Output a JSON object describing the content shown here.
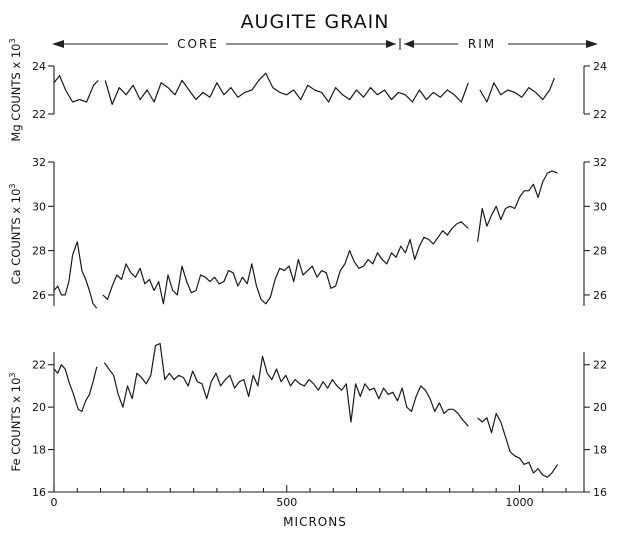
{
  "chart_data": {
    "type": "line",
    "title": "AUGITE GRAIN",
    "zones": {
      "core": "CORE",
      "rim": "RIM",
      "boundary_microns": 740
    },
    "xlabel": "MICRONS",
    "xlim": [
      0,
      1100
    ],
    "x_ticks": [
      0,
      500,
      1000
    ],
    "x_tick_labels": [
      "0",
      "500",
      "1000"
    ],
    "panels": [
      {
        "key": "mg",
        "ylabel_parts": [
          "Mg COUNTS x 10",
          "3"
        ],
        "ylim": [
          22,
          24
        ],
        "y_ticks": [
          22,
          24
        ],
        "y_tick_labels": [
          "22",
          "24"
        ],
        "segments": [
          {
            "x": [
              0,
              12,
              25,
              40,
              55,
              70,
              85,
              95
            ],
            "y": [
              23.3,
              23.6,
              23.0,
              22.5,
              22.6,
              22.5,
              23.2,
              23.4
            ]
          },
          {
            "x": [
              110,
              125,
              140,
              155,
              170,
              185,
              200,
              215,
              230,
              245,
              260,
              275,
              290,
              305,
              320,
              335,
              350,
              365,
              380,
              395,
              410,
              425,
              440,
              455,
              470,
              485,
              500,
              515,
              530,
              545,
              560,
              575,
              590,
              605,
              620,
              635,
              650,
              665,
              680,
              695,
              710,
              725,
              740,
              755,
              770,
              785,
              800,
              815,
              830,
              845,
              860,
              875,
              890
            ],
            "y": [
              23.4,
              22.4,
              23.1,
              22.8,
              23.2,
              22.6,
              23.0,
              22.5,
              23.3,
              23.1,
              22.8,
              23.4,
              23.0,
              22.6,
              22.9,
              22.7,
              23.3,
              22.8,
              23.1,
              22.7,
              22.9,
              23.0,
              23.4,
              23.7,
              23.1,
              22.9,
              22.8,
              23.0,
              22.6,
              23.2,
              23.0,
              22.9,
              22.5,
              23.1,
              22.8,
              22.6,
              23.0,
              22.7,
              23.1,
              22.8,
              23.0,
              22.6,
              22.9,
              22.8,
              22.5,
              23.0,
              22.6,
              22.9,
              22.7,
              23.0,
              22.8,
              22.5,
              23.3
            ]
          },
          {
            "x": [
              915,
              930,
              945,
              960,
              975,
              990,
              1005,
              1020,
              1035,
              1050,
              1065,
              1075
            ],
            "y": [
              23.0,
              22.5,
              23.3,
              22.8,
              23.0,
              22.9,
              22.7,
              23.1,
              22.9,
              22.6,
              23.0,
              23.5
            ]
          }
        ]
      },
      {
        "key": "ca",
        "ylabel_parts": [
          "Ca COUNTS x 10",
          "3"
        ],
        "ylim": [
          25.5,
          32
        ],
        "y_ticks": [
          26,
          28,
          30,
          32
        ],
        "y_tick_labels": [
          "26",
          "28",
          "30",
          "32"
        ],
        "segments": [
          {
            "x": [
              0,
              8,
              16,
              24,
              32,
              40,
              50,
              60,
              68,
              76,
              84,
              92
            ],
            "y": [
              26.2,
              26.4,
              26.0,
              26.0,
              26.6,
              27.8,
              28.4,
              27.1,
              26.7,
              26.2,
              25.6,
              25.4
            ]
          },
          {
            "x": [
              105,
              115,
              125,
              135,
              145,
              155,
              165,
              175,
              185,
              195,
              205,
              215,
              225,
              235,
              245,
              255,
              265,
              275,
              285,
              295,
              305,
              315,
              325,
              335,
              345,
              355,
              365,
              375,
              385,
              395,
              405,
              415,
              425,
              435,
              445,
              455,
              465,
              475,
              485,
              495,
              505,
              515,
              525,
              535,
              545,
              555,
              565,
              575,
              585,
              595,
              605,
              615,
              625,
              635,
              645,
              655,
              665,
              675,
              685,
              695,
              705,
              715,
              725,
              735,
              745,
              755,
              765,
              775,
              785,
              795,
              805,
              815,
              825,
              835,
              845,
              855,
              865,
              875,
              890
            ],
            "y": [
              26.0,
              25.8,
              26.4,
              26.9,
              26.7,
              27.4,
              27.0,
              26.8,
              27.2,
              26.5,
              26.7,
              26.2,
              26.6,
              25.6,
              26.9,
              26.2,
              26.0,
              27.3,
              26.6,
              26.1,
              26.2,
              26.9,
              26.8,
              26.6,
              26.8,
              26.5,
              26.6,
              27.1,
              27.0,
              26.4,
              26.8,
              26.5,
              27.4,
              26.4,
              25.8,
              25.6,
              25.9,
              26.7,
              27.2,
              27.1,
              27.3,
              26.6,
              27.6,
              26.9,
              27.1,
              27.3,
              26.8,
              27.1,
              27.0,
              26.3,
              26.4,
              27.1,
              27.4,
              28.0,
              27.5,
              27.2,
              27.3,
              27.6,
              27.4,
              27.9,
              27.6,
              27.4,
              27.9,
              27.7,
              28.2,
              27.9,
              28.5,
              27.6,
              28.2,
              28.6,
              28.5,
              28.3,
              28.6,
              28.9,
              28.7,
              29.0,
              29.2,
              29.3,
              29.0
            ]
          },
          {
            "x": [
              910,
              920,
              930,
              940,
              950,
              960,
              970,
              980,
              990,
              1000,
              1010,
              1020,
              1030,
              1040,
              1050,
              1060,
              1070,
              1082
            ],
            "y": [
              28.4,
              29.9,
              29.1,
              29.6,
              30.0,
              29.4,
              29.9,
              30.0,
              29.9,
              30.4,
              30.7,
              30.7,
              31.0,
              30.4,
              31.1,
              31.5,
              31.6,
              31.5
            ]
          }
        ]
      },
      {
        "key": "fe",
        "ylabel_parts": [
          "Fe COUNTS x 10",
          "3"
        ],
        "ylim": [
          16,
          22.6
        ],
        "y_ticks": [
          16,
          18,
          20,
          22
        ],
        "y_tick_labels": [
          "16",
          "18",
          "20",
          "22"
        ],
        "segments": [
          {
            "x": [
              0,
              8,
              16,
              24,
              32,
              42,
              52,
              60,
              68,
              76,
              84,
              92
            ],
            "y": [
              21.8,
              21.6,
              22.0,
              21.8,
              21.2,
              20.6,
              19.9,
              19.8,
              20.3,
              20.6,
              21.2,
              21.9
            ]
          },
          {
            "x": [
              108,
              118,
              128,
              138,
              148,
              158,
              168,
              178,
              188,
              198,
              208,
              218,
              228,
              238,
              248,
              258,
              268,
              278,
              288,
              298,
              308,
              318,
              328,
              338,
              348,
              358,
              368,
              378,
              388,
              398,
              408,
              418,
              428,
              438,
              448,
              458,
              468,
              478,
              488,
              498,
              508,
              518,
              528,
              538,
              548,
              558,
              568,
              578,
              588,
              598,
              608,
              618,
              628,
              638,
              648,
              658,
              668,
              678,
              688,
              698,
              708,
              718,
              728,
              738,
              748,
              758,
              768,
              778,
              788,
              798,
              808,
              818,
              828,
              838,
              848,
              858,
              868,
              878,
              890
            ],
            "y": [
              22.1,
              21.8,
              21.5,
              20.6,
              20.0,
              21.0,
              20.4,
              21.6,
              21.4,
              21.1,
              21.5,
              22.9,
              23.0,
              21.3,
              21.6,
              21.3,
              21.5,
              21.4,
              21.0,
              21.7,
              21.2,
              21.1,
              20.4,
              21.2,
              21.6,
              21.0,
              21.3,
              21.5,
              20.9,
              21.2,
              21.3,
              20.5,
              21.5,
              21.0,
              22.4,
              21.6,
              21.3,
              21.8,
              21.2,
              21.5,
              21.0,
              21.3,
              21.1,
              21.0,
              21.3,
              21.1,
              20.8,
              21.2,
              20.9,
              21.3,
              21.0,
              20.8,
              21.1,
              19.3,
              21.1,
              20.5,
              21.1,
              20.8,
              20.9,
              20.4,
              20.9,
              20.6,
              20.7,
              20.3,
              20.9,
              20.0,
              19.8,
              20.5,
              21.0,
              20.8,
              20.4,
              19.8,
              20.2,
              19.7,
              19.9,
              19.9,
              19.7,
              19.4,
              19.1
            ]
          },
          {
            "x": [
              910,
              920,
              930,
              940,
              950,
              960,
              970,
              980,
              990,
              1000,
              1010,
              1020,
              1030,
              1040,
              1050,
              1060,
              1070,
              1082
            ],
            "y": [
              19.5,
              19.3,
              19.5,
              18.8,
              19.7,
              19.3,
              18.6,
              17.9,
              17.7,
              17.6,
              17.3,
              17.4,
              16.9,
              17.1,
              16.8,
              16.7,
              16.9,
              17.3
            ]
          }
        ]
      }
    ]
  }
}
